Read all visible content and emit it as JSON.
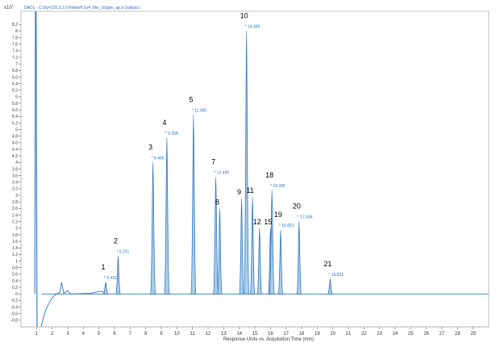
{
  "chart_data": {
    "type": "line",
    "title": "DAD1 - C:Sig=220.0,2.0  Refwoff Sv4_Mix_10ppm_ap.d  Subtract",
    "xlabel": "Response Units vs. Acquisition Time (min)",
    "ylabel": "",
    "y_multiplier": "x10",
    "y_multiplier_exp": "1",
    "xlim": [
      0,
      30
    ],
    "ylim": [
      -1.0,
      8.6
    ],
    "x_ticks": [
      1,
      2,
      3,
      4,
      5,
      6,
      7,
      8,
      9,
      10,
      11,
      12,
      13,
      14,
      15,
      16,
      17,
      18,
      19,
      20,
      21,
      22,
      23,
      24,
      25,
      26,
      27,
      28,
      29
    ],
    "y_ticks": [
      -0.8,
      -0.6,
      -0.4,
      -0.2,
      0,
      0.2,
      0.4,
      0.6,
      0.8,
      1,
      1.2,
      1.4,
      1.6,
      1.8,
      2,
      2.2,
      2.4,
      2.6,
      2.8,
      3,
      3.2,
      3.4,
      3.6,
      3.8,
      4,
      4.2,
      4.4,
      4.6,
      4.8,
      5,
      5.2,
      5.4,
      5.6,
      5.8,
      6,
      6.2,
      6.4,
      6.6,
      6.8,
      7,
      7.2,
      7.4,
      7.6,
      7.8,
      8,
      8.2
    ],
    "grid": false,
    "series_color": "#2f74c0",
    "fill_color": "#a9cdeb",
    "baseline": 0,
    "injection_peak": {
      "x": 0.95,
      "y": 8.6
    },
    "peaks": [
      {
        "label": "1",
        "rt": 5.431,
        "rt_label": "5.431",
        "height": 0.35
      },
      {
        "label": "2",
        "rt": 6.231,
        "rt_label": "6.231",
        "height": 1.15
      },
      {
        "label": "3",
        "rt": 8.466,
        "rt_label": "8.466",
        "height": 4.0
      },
      {
        "label": "4",
        "rt": 9.358,
        "rt_label": "9.358",
        "height": 4.75
      },
      {
        "label": "5",
        "rt": 11.065,
        "rt_label": "11.065",
        "height": 5.45
      },
      {
        "label": "7",
        "rt": 12.496,
        "rt_label": "12.496",
        "height": 3.55
      },
      {
        "label": "8",
        "rt": 12.75,
        "rt_label": "",
        "height": 2.6
      },
      {
        "label": "9",
        "rt": 14.15,
        "rt_label": "",
        "height": 2.9
      },
      {
        "label": "10",
        "rt": 14.466,
        "rt_label": "14.466",
        "height": 8.0
      },
      {
        "label": "11",
        "rt": 14.85,
        "rt_label": "",
        "height": 2.95
      },
      {
        "label": "12",
        "rt": 15.3,
        "rt_label": "",
        "height": 2.0
      },
      {
        "label": "15",
        "rt": 16.0,
        "rt_label": "",
        "height": 2.0
      },
      {
        "label": "18",
        "rt": 16.095,
        "rt_label": "16.095",
        "height": 3.15
      },
      {
        "label": "19",
        "rt": 16.651,
        "rt_label": "16.651",
        "height": 1.95
      },
      {
        "label": "20",
        "rt": 17.838,
        "rt_label": "17.838",
        "height": 2.2
      },
      {
        "label": "21",
        "rt": 19.831,
        "rt_label": "19.831",
        "height": 0.45
      }
    ]
  }
}
